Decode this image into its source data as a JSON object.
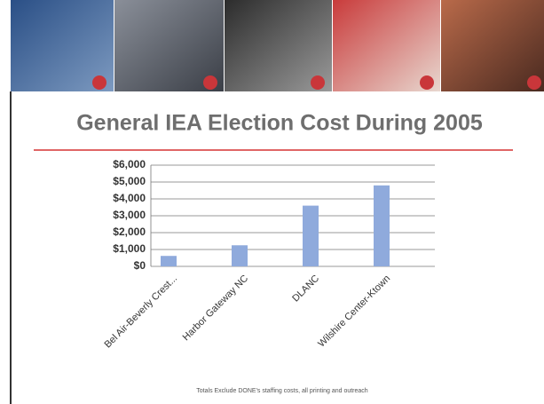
{
  "chart_data": {
    "type": "bar",
    "title": "General IEA Election Cost During 2005",
    "categories": [
      "Bel Air-Beverly Crest...",
      "Harbor Gateway NC",
      "DLANC",
      "Wilshire Center-Ktown"
    ],
    "values": [
      620,
      1250,
      3600,
      4800
    ],
    "color": "#8faadc",
    "ylim": [
      0,
      6000
    ],
    "yticks": [
      {
        "value": 0,
        "label": "$0"
      },
      {
        "value": 1000,
        "label": "$1,000"
      },
      {
        "value": 2000,
        "label": "$2,000"
      },
      {
        "value": 3000,
        "label": "$3,000"
      },
      {
        "value": 4000,
        "label": "$4,000"
      },
      {
        "value": 5000,
        "label": "$5,000"
      },
      {
        "value": 6000,
        "label": "$6,000"
      }
    ],
    "grid": true,
    "footnote": "Totals Exclude DONE's staffing costs, all printing and outreach"
  }
}
